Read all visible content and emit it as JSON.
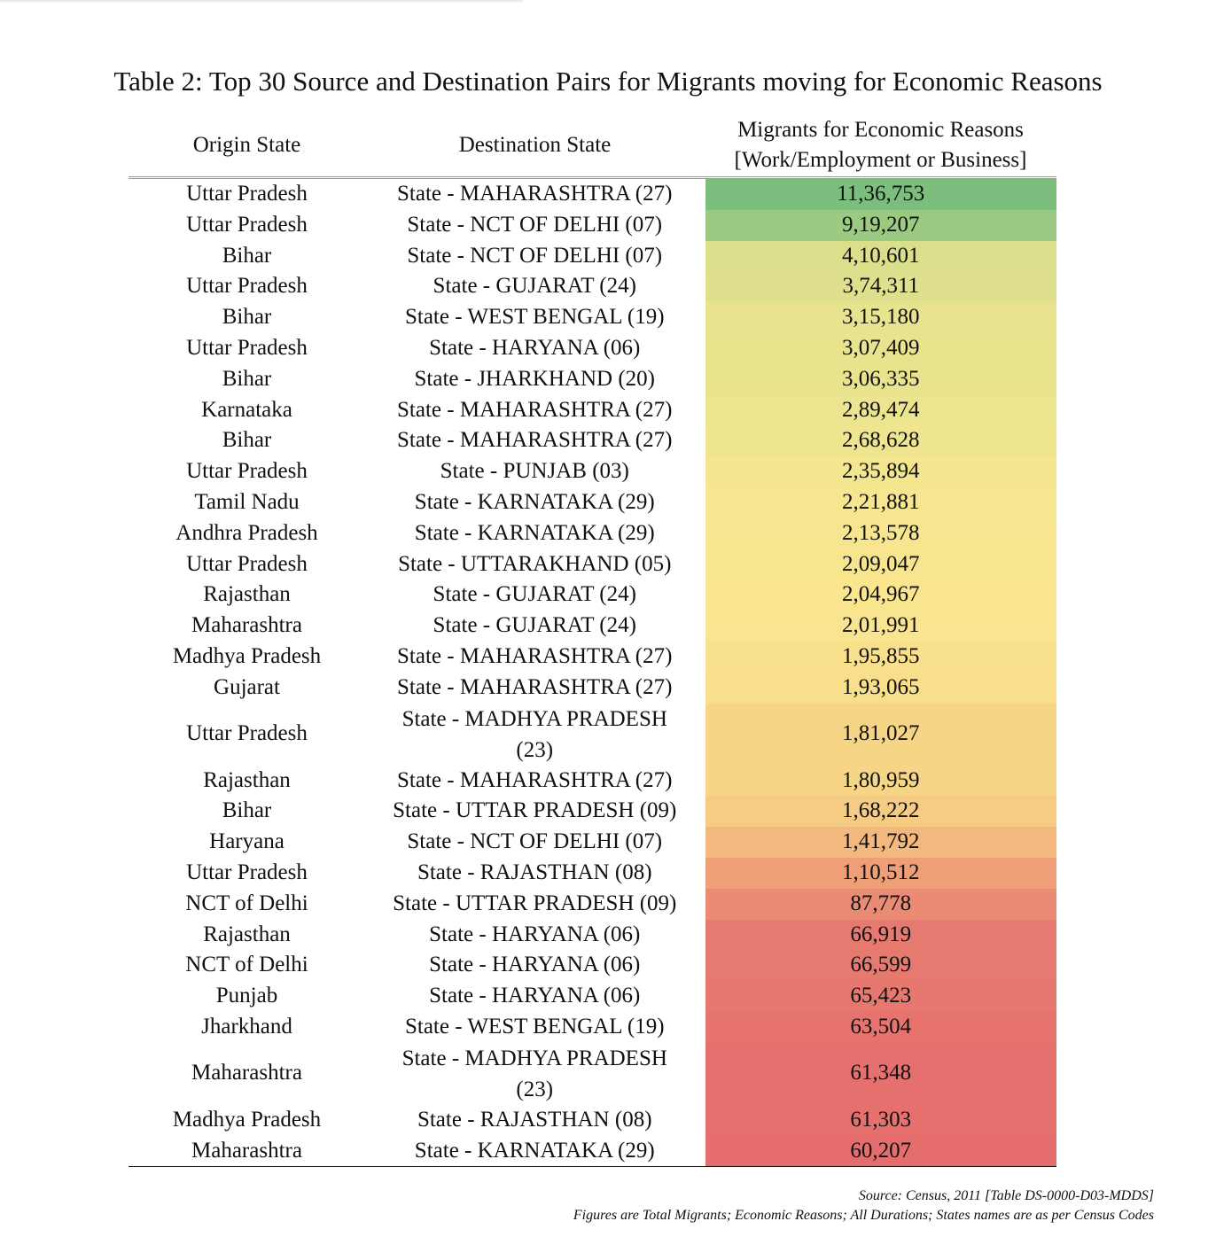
{
  "title": "Table 2: Top 30 Source and Destination Pairs for Migrants moving for Economic Reasons",
  "columns": {
    "origin": "Origin State",
    "destination": "Destination State",
    "migrants_line1": "Migrants for Economic Reasons",
    "migrants_line2": "[Work/Employment or Business]"
  },
  "rows": [
    {
      "origin": "Uttar Pradesh",
      "destination": "State - MAHARASHTRA (27)",
      "migrants": "11,36,753",
      "color": "#7cbe7e"
    },
    {
      "origin": "Uttar Pradesh",
      "destination": "State - NCT OF DELHI (07)",
      "migrants": "9,19,207",
      "color": "#9cca82"
    },
    {
      "origin": "Bihar",
      "destination": "State - NCT OF DELHI (07)",
      "migrants": "4,10,601",
      "color": "#dadf8c"
    },
    {
      "origin": "Uttar Pradesh",
      "destination": "State - GUJARAT (24)",
      "migrants": "3,74,311",
      "color": "#dfe08d"
    },
    {
      "origin": "Bihar",
      "destination": "State - WEST BENGAL (19)",
      "migrants": "3,15,180",
      "color": "#e8e38e"
    },
    {
      "origin": "Uttar Pradesh",
      "destination": "State - HARYANA (06)",
      "migrants": "3,07,409",
      "color": "#e9e38e"
    },
    {
      "origin": "Bihar",
      "destination": "State - JHARKHAND (20)",
      "migrants": "3,06,335",
      "color": "#e9e38e"
    },
    {
      "origin": "Karnataka",
      "destination": "State - MAHARASHTRA (27)",
      "migrants": "2,89,474",
      "color": "#ece48f"
    },
    {
      "origin": "Bihar",
      "destination": "State - MAHARASHTRA (27)",
      "migrants": "2,68,628",
      "color": "#efe58f"
    },
    {
      "origin": "Uttar Pradesh",
      "destination": "State - PUNJAB (03)",
      "migrants": "2,35,894",
      "color": "#f3e68f"
    },
    {
      "origin": "Tamil Nadu",
      "destination": "State - KARNATAKA (29)",
      "migrants": "2,21,881",
      "color": "#f6e68f"
    },
    {
      "origin": "Andhra Pradesh",
      "destination": "State - KARNATAKA (29)",
      "migrants": "2,13,578",
      "color": "#f7e68f"
    },
    {
      "origin": "Uttar Pradesh",
      "destination": "State - UTTARAKHAND (05)",
      "migrants": "2,09,047",
      "color": "#f8e68f"
    },
    {
      "origin": "Rajasthan",
      "destination": "State - GUJARAT (24)",
      "migrants": "2,04,967",
      "color": "#f9e68f"
    },
    {
      "origin": "Maharashtra",
      "destination": "State - GUJARAT (24)",
      "migrants": "2,01,991",
      "color": "#f9e58f"
    },
    {
      "origin": "Madhya Pradesh",
      "destination": "State - MAHARASHTRA (27)",
      "migrants": "1,95,855",
      "color": "#f9e08d"
    },
    {
      "origin": "Gujarat",
      "destination": "State - MAHARASHTRA (27)",
      "migrants": "1,93,065",
      "color": "#f9df8c"
    },
    {
      "origin": "Uttar Pradesh",
      "destination": "State - MADHYA PRADESH (23)",
      "migrants": "1,81,027",
      "color": "#f7d587",
      "tall": true
    },
    {
      "origin": "Rajasthan",
      "destination": "State - MAHARASHTRA (27)",
      "migrants": "1,80,959",
      "color": "#f7d587"
    },
    {
      "origin": "Bihar",
      "destination": "State - UTTAR PRADESH (09)",
      "migrants": "1,68,222",
      "color": "#f6cc84"
    },
    {
      "origin": "Haryana",
      "destination": "State - NCT OF DELHI (07)",
      "migrants": "1,41,792",
      "color": "#f3b87d"
    },
    {
      "origin": "Uttar Pradesh",
      "destination": "State - RAJASTHAN (08)",
      "migrants": "1,10,512",
      "color": "#ee9f78"
    },
    {
      "origin": "NCT of Delhi",
      "destination": "State - UTTAR PRADESH (09)",
      "migrants": "87,778",
      "color": "#ea8b74"
    },
    {
      "origin": "Rajasthan",
      "destination": "State - HARYANA (06)",
      "migrants": "66,919",
      "color": "#e77a70"
    },
    {
      "origin": "NCT of Delhi",
      "destination": "State - HARYANA (06)",
      "migrants": "66,599",
      "color": "#e77a70"
    },
    {
      "origin": "Punjab",
      "destination": "State - HARYANA (06)",
      "migrants": "65,423",
      "color": "#e6786f"
    },
    {
      "origin": "Jharkhand",
      "destination": "State - WEST BENGAL (19)",
      "migrants": "63,504",
      "color": "#e6736e"
    },
    {
      "origin": "Maharashtra",
      "destination": "State - MADHYA PRADESH (23)",
      "migrants": "61,348",
      "color": "#e6706e",
      "tall": true
    },
    {
      "origin": "Madhya Pradesh",
      "destination": "State - RAJASTHAN (08)",
      "migrants": "61,303",
      "color": "#e6706e"
    },
    {
      "origin": "Maharashtra",
      "destination": "State - KARNATAKA (29)",
      "migrants": "60,207",
      "color": "#e66d6d"
    }
  ],
  "notes": {
    "source": "Source: Census, 2011 [Table DS-0000-D03-MDDS]",
    "figures": "Figures are Total Migrants; Economic Reasons; All Durations; States names are as per Census Codes"
  }
}
